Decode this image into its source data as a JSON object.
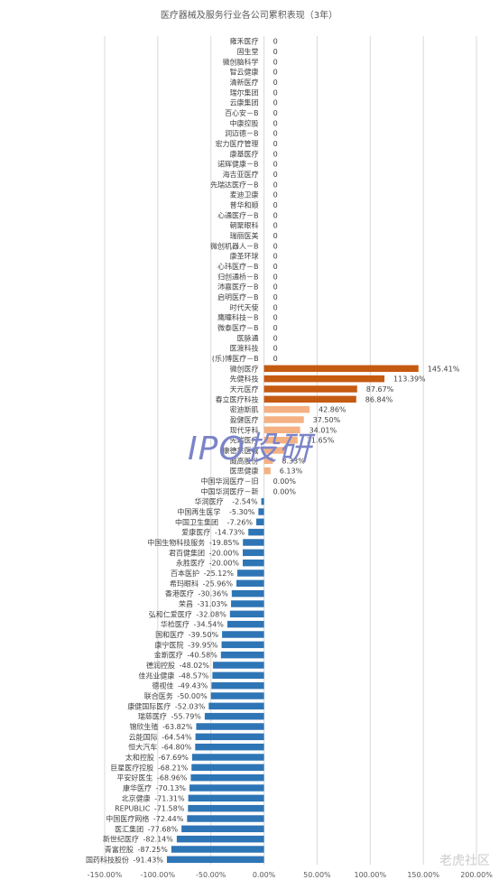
{
  "chart_data": {
    "type": "bar",
    "orientation": "horizontal",
    "title": "医疗器械及服务行业各公司累积表现（3年）",
    "xlim": [
      -150,
      200
    ],
    "xticks": [
      "-150.00%",
      "-100.00%",
      "-50.00%",
      "0.00%",
      "50.00%",
      "100.00%",
      "150.00%",
      "200.00%"
    ],
    "grid": true,
    "colors": {
      "positive_top": "#c55a11",
      "positive_light": "#f4b183",
      "negative": "#2e75b6",
      "grid": "#d9d9d9"
    },
    "categories": [
      "雍禾医疗",
      "固生堂",
      "微创脑科学",
      "智云健康",
      "清新医疗",
      "瑞尔集团",
      "云康集团",
      "百心安－B",
      "中康控股",
      "润迈德－B",
      "宏力医疗管理",
      "康基医疗",
      "诺辉健康－B",
      "海吉亚医疗",
      "先瑞达医疗－B",
      "麦迪卫康",
      "普华和顺",
      "心通医疗－B",
      "朝聚眼科",
      "瑞丽医美",
      "微创机器人－B",
      "康圣环球",
      "心玮医疗－B",
      "归创通桥－B",
      "沛嘉医疗－B",
      "启明医疗－B",
      "时代天使",
      "鹰瞳科技－B",
      "微泰医疗－B",
      "医脉通",
      "医渡科技",
      "(乐)博医疗－B",
      "微创医疗",
      "先健科技",
      "天元医疗",
      "春立医疗科技",
      "密迪斯肌",
      "盈健医疗",
      "现代牙科",
      "先瑞医疗",
      "康德莱医械",
      "威高股份",
      "医思健康",
      "中国华润医疗－旧",
      "中国华润医疗－新",
      "华润医疗",
      "中国再生医学",
      "中国卫生集团",
      "爱康医疗",
      "中国生物科技服务",
      "君百健集团",
      "永胜医疗",
      "百本医护",
      "希玛眼科",
      "香港医疗",
      "荣昌",
      "弘和仁爱医疗",
      "华检医疗",
      "国和医疗",
      "康宁医院",
      "金斯医疗",
      "德润控股",
      "佳兆业健康",
      "德视佳",
      "联合医务",
      "康健国际医疗",
      "瑞慈医疗",
      "锦欣生殖",
      "云能国际",
      "恒大汽车",
      "太和控股",
      "巨星医疗控股",
      "平安好医生",
      "康华医疗",
      "北京健康",
      "REPUBLIC",
      "中国医疗网络",
      "医汇集团",
      "新世纪医疗",
      "青富控股",
      "国药科技股份"
    ],
    "values": [
      0,
      0,
      0,
      0,
      0,
      0,
      0,
      0,
      0,
      0,
      0,
      0,
      0,
      0,
      0,
      0,
      0,
      0,
      0,
      0,
      0,
      0,
      0,
      0,
      0,
      0,
      0,
      0,
      0,
      0,
      0,
      0,
      145.41,
      113.39,
      87.67,
      86.84,
      42.86,
      37.5,
      34.01,
      31.65,
      20.3,
      8.33,
      6.13,
      0,
      0,
      -2.54,
      -5.3,
      -7.26,
      -14.73,
      -19.85,
      -20.0,
      -20.0,
      -25.12,
      -25.96,
      -30.36,
      -31.03,
      -32.08,
      -34.54,
      -39.5,
      -39.95,
      -40.58,
      -48.02,
      -48.57,
      -49.43,
      -50.0,
      -52.03,
      -55.79,
      -63.82,
      -64.54,
      -64.8,
      -67.69,
      -68.21,
      -68.96,
      -70.13,
      -71.31,
      -71.58,
      -72.44,
      -77.68,
      -82.14,
      -87.25,
      -91.43
    ],
    "labels": [
      "0",
      "0",
      "0",
      "0",
      "0",
      "0",
      "0",
      "0",
      "0",
      "0",
      "0",
      "0",
      "0",
      "0",
      "0",
      "0",
      "0",
      "0",
      "0",
      "0",
      "0",
      "0",
      "0",
      "0",
      "0",
      "0",
      "0",
      "0",
      "0",
      "0",
      "0",
      "0",
      "145.41%",
      "113.39%",
      "87.67%",
      "86.84%",
      "42.86%",
      "37.50%",
      "34.01%",
      "31.65%",
      "",
      "8.33%",
      "6.13%",
      "0.00%",
      "0.00%",
      "-2.54%",
      "-5.30%",
      "-7.26%",
      "-14.73%",
      "-19.85%",
      "-20.00%",
      "-20.00%",
      "-25.12%",
      "-25.96%",
      "-30.36%",
      "-31.03%",
      "-32.08%",
      "-34.54%",
      "-39.50%",
      "-39.95%",
      "-40.58%",
      "-48.02%",
      "-48.57%",
      "-49.43%",
      "-50.00%",
      "-52.03%",
      "-55.79%",
      "-63.82%",
      "-64.54%",
      "-64.80%",
      "-67.69%",
      "-68.21%",
      "-68.96%",
      "-70.13%",
      "-71.31%",
      "-71.58%",
      "-72.44%",
      "-77.68%",
      "-82.14%",
      "-87.25%",
      "-91.43%"
    ]
  },
  "watermark": "IPO投研",
  "brand": "老虎社区"
}
